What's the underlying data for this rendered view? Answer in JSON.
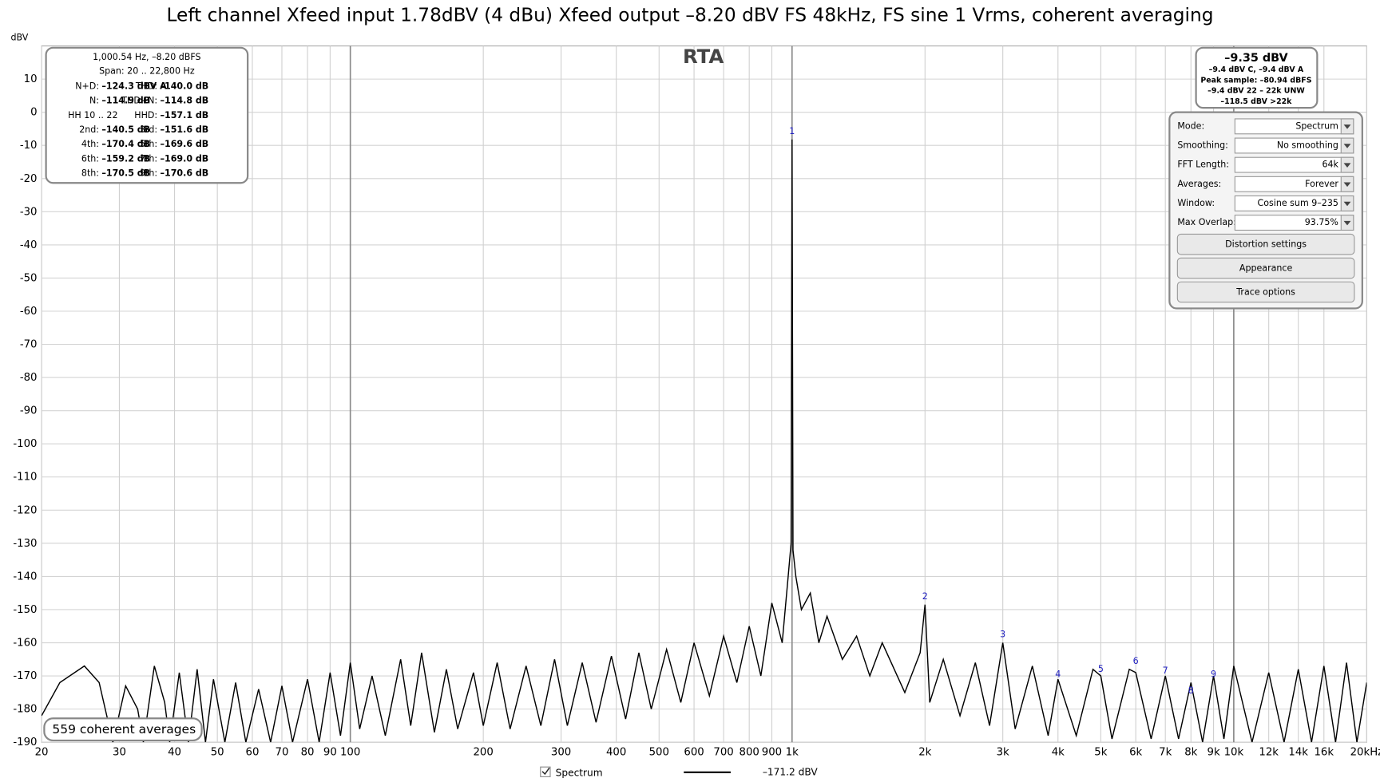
{
  "chart_data": {
    "type": "line",
    "title": "Left channel Xfeed input 1.78dBV (4 dBu) Xfeed output –8.20 dBV FS 48kHz, FS sine 1 Vrms, coherent averaging",
    "panel_title": "RTA",
    "y_unit": "dBV",
    "log_x": true,
    "grid": true,
    "xlim": [
      20,
      20000
    ],
    "ylim": [
      -190,
      20
    ],
    "xticks": [
      20,
      30,
      40,
      50,
      60,
      70,
      80,
      90,
      100,
      200,
      300,
      400,
      500,
      600,
      700,
      800,
      900,
      {
        "value": 1000,
        "label": "1k"
      },
      {
        "value": 2000,
        "label": "2k"
      },
      {
        "value": 3000,
        "label": "3k"
      },
      {
        "value": 4000,
        "label": "4k"
      },
      {
        "value": 5000,
        "label": "5k"
      },
      {
        "value": 6000,
        "label": "6k"
      },
      {
        "value": 7000,
        "label": "7k"
      },
      {
        "value": 8000,
        "label": "8k"
      },
      {
        "value": 9000,
        "label": "9k"
      },
      {
        "value": 10000,
        "label": "10k"
      },
      {
        "value": 12000,
        "label": "12k"
      },
      {
        "value": 14000,
        "label": "14k"
      },
      {
        "value": 16000,
        "label": "16k"
      },
      {
        "value": 20000,
        "label": "20kHz"
      }
    ],
    "yticks": [
      -190,
      -180,
      -170,
      -160,
      -150,
      -140,
      -130,
      -120,
      -110,
      -100,
      -90,
      -80,
      -70,
      -60,
      -50,
      -40,
      -30,
      -20,
      -10,
      0,
      10
    ],
    "series": [
      {
        "name": "Spectrum",
        "color": "#000000",
        "readout": "–171.2 dBV",
        "x": [
          20,
          22,
          25,
          27,
          29,
          31,
          33,
          34,
          36,
          38,
          39,
          41,
          43,
          45,
          47,
          49,
          52,
          55,
          58,
          62,
          66,
          70,
          74,
          80,
          85,
          90,
          95,
          100,
          105,
          112,
          120,
          130,
          137,
          145,
          155,
          165,
          175,
          190,
          200,
          215,
          230,
          250,
          270,
          290,
          310,
          335,
          360,
          390,
          420,
          450,
          480,
          520,
          560,
          600,
          650,
          700,
          750,
          800,
          850,
          900,
          950,
          980,
          995,
          1000,
          1005,
          1020,
          1050,
          1100,
          1150,
          1200,
          1300,
          1400,
          1500,
          1600,
          1800,
          1950,
          2000,
          2050,
          2200,
          2400,
          2600,
          2800,
          3000,
          3200,
          3500,
          3800,
          4000,
          4400,
          4800,
          5000,
          5300,
          5800,
          6000,
          6500,
          7000,
          7500,
          8000,
          8500,
          9000,
          9500,
          10000,
          11000,
          12000,
          13000,
          14000,
          15000,
          16000,
          17000,
          18000,
          19000,
          20000
        ],
        "values": [
          -182,
          -172,
          -167,
          -172,
          -190,
          -173,
          -180,
          -190,
          -167,
          -178,
          -190,
          -169,
          -190,
          -168,
          -190,
          -171,
          -190,
          -172,
          -190,
          -174,
          -190,
          -173,
          -190,
          -171,
          -190,
          -169,
          -188,
          -166,
          -186,
          -170,
          -188,
          -165,
          -185,
          -163,
          -187,
          -168,
          -186,
          -169,
          -185,
          -166,
          -186,
          -167,
          -185,
          -165,
          -185,
          -166,
          -184,
          -164,
          -183,
          -163,
          -180,
          -162,
          -178,
          -160,
          -176,
          -158,
          -172,
          -155,
          -170,
          -148,
          -160,
          -140,
          -130,
          -8.2,
          -132,
          -140,
          -150,
          -145,
          -160,
          -152,
          -165,
          -158,
          -170,
          -160,
          -175,
          -163,
          -148.5,
          -178,
          -165,
          -182,
          -166,
          -185,
          -160,
          -186,
          -167,
          -188,
          -171,
          -188,
          -168,
          -170,
          -189,
          -168,
          -169,
          -189,
          -170,
          -189,
          -172,
          -190,
          -170,
          -189,
          -167,
          -190,
          -169,
          -190,
          -168,
          -190,
          -167,
          -190,
          -166,
          -190,
          -172
        ]
      }
    ],
    "harmonic_markers": {
      "color": "#2020c0",
      "labels": [
        1,
        2,
        3,
        4,
        5,
        6,
        7,
        8,
        9
      ],
      "x": [
        1000,
        2000,
        3000,
        4000,
        5000,
        6000,
        7000,
        8000,
        9000
      ],
      "y": [
        -8.2,
        -148.5,
        -160,
        -172,
        -170.5,
        -168,
        -171,
        -177,
        -172
      ]
    }
  },
  "measurement_box": {
    "header": [
      "1,000.54 Hz, –8.20 dBFS",
      "Span: 20 .. 22,800 Hz"
    ],
    "rows": [
      [
        [
          "N+D:",
          "–124.3 dBV A"
        ],
        [
          "THD:",
          "–140.0 dB"
        ]
      ],
      [
        [
          "N:",
          "–114.9 dB"
        ],
        [
          "THD+N:",
          "–114.8 dB"
        ]
      ],
      [
        [
          "HH 10 .. 22"
        ],
        [
          "HHD:",
          "–157.1 dB"
        ]
      ],
      [
        [
          "2nd:",
          "–140.5 dB"
        ],
        [
          "3rd:",
          "–151.6 dB"
        ]
      ],
      [
        [
          "4th:",
          "–170.4 dB"
        ],
        [
          "5th:",
          "–169.6 dB"
        ]
      ],
      [
        [
          "6th:",
          "–159.2 dB"
        ],
        [
          "7th:",
          "–169.0 dB"
        ]
      ],
      [
        [
          "8th:",
          "–170.5 dB"
        ],
        [
          "9th:",
          "–170.6 dB"
        ]
      ]
    ]
  },
  "level_box": [
    "–9.35 dBV",
    "–9.4 dBV C, –9.4 dBV A",
    "Peak sample: –80.94 dBFS",
    "–9.4 dBV 22 – 22k UNW",
    "–118.5 dBV >22k"
  ],
  "averages_label": "559 coherent averages",
  "controls": {
    "rows": [
      {
        "label": "Mode:",
        "value": "Spectrum"
      },
      {
        "label": "Smoothing:",
        "value": "No  smoothing"
      },
      {
        "label": "FFT Length:",
        "value": "64k"
      },
      {
        "label": "Averages:",
        "value": "Forever"
      },
      {
        "label": "Window:",
        "value": "Cosine sum 9–235"
      },
      {
        "label": "Max Overlap:",
        "value": "93.75%"
      }
    ],
    "buttons": [
      "Distortion settings",
      "Appearance",
      "Trace options"
    ]
  }
}
